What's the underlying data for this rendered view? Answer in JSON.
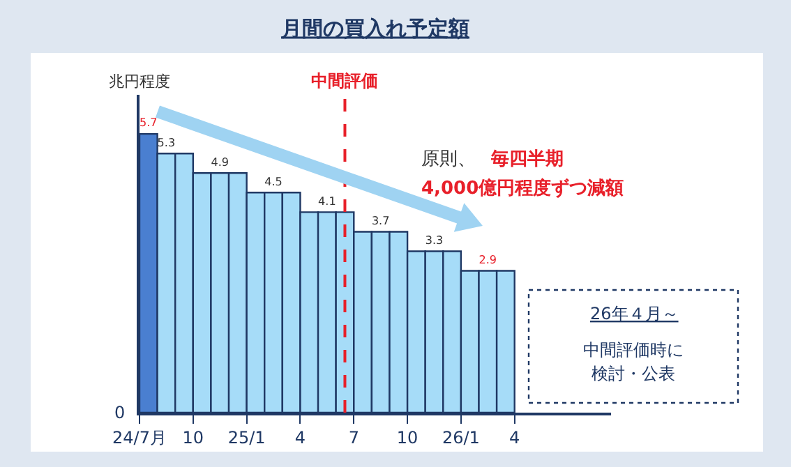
{
  "chart_data": {
    "type": "bar",
    "title": "月間の買入れ予定額",
    "ylabel": "兆円程度",
    "categories": [
      "24/7月",
      null,
      null,
      "10",
      null,
      null,
      "25/1",
      null,
      null,
      "4",
      null,
      null,
      "7",
      null,
      null,
      "10",
      null,
      null,
      "26/1",
      null,
      null,
      "4",
      null,
      null,
      null,
      null
    ],
    "values": [
      5.7,
      5.3,
      5.3,
      4.9,
      4.9,
      4.9,
      4.5,
      4.5,
      4.5,
      4.1,
      4.1,
      4.1,
      3.7,
      3.7,
      3.7,
      3.3,
      3.3,
      3.3,
      2.9,
      2.9,
      2.9,
      null,
      null,
      null,
      null,
      null
    ],
    "value_labels": [
      "5.7",
      "5.3",
      null,
      null,
      "4.9",
      null,
      null,
      "4.5",
      null,
      null,
      "4.1",
      null,
      null,
      "3.7",
      null,
      null,
      "3.3",
      null,
      null,
      "2.9",
      null,
      null,
      null,
      null,
      null,
      null
    ],
    "colors": [
      "#4a7fd0",
      "#a6dcf8",
      "#a6dcf8",
      "#a6dcf8",
      "#a6dcf8",
      "#a6dcf8",
      "#a6dcf8",
      "#a6dcf8",
      "#a6dcf8",
      "#a6dcf8",
      "#a6dcf8",
      "#a6dcf8",
      "#a6dcf8",
      "#a6dcf8",
      "#a6dcf8",
      "#a6dcf8",
      "#a6dcf8",
      "#a6dcf8",
      "#a6dcf8",
      "#a6dcf8",
      "#a6dcf8",
      "#a6dcf8",
      "#a6dcf8",
      "#a6dcf8",
      "#a6dcf8",
      "#a6dcf8"
    ],
    "ylim": [
      0,
      6.5
    ],
    "annotations": [
      "原則、",
      "毎四半期",
      "4,000億円程度ずつ減額",
      "26年４月～",
      "中間評価時に",
      "検討・公表",
      "0",
      "中間評価"
    ],
    "legend": false
  }
}
